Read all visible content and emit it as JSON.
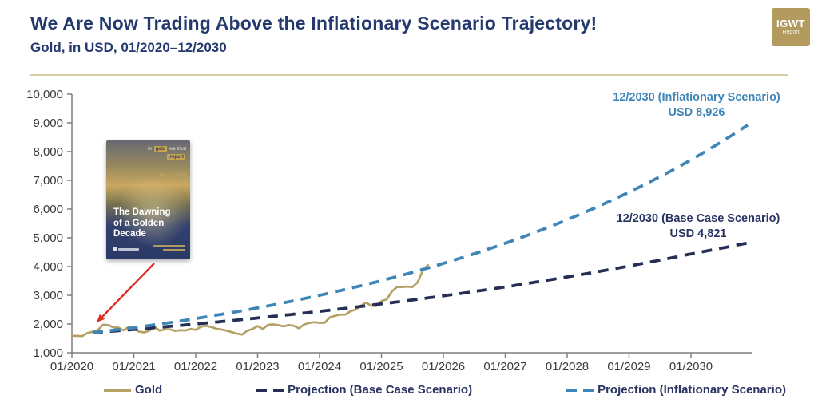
{
  "header": {
    "title": "We Are Now Trading Above the Inflationary Scenario Trajectory!",
    "subtitle": "Gold, in USD, 01/2020–12/2030",
    "logo_line1": "IGWT",
    "logo_line2": "Report"
  },
  "book_cover": {
    "badge_prefix": "in",
    "badge_gold": "gold",
    "badge_suffix": "we trust",
    "badge_report": ".report",
    "date": "May 27, 2020\nExtended Version",
    "title": "The Dawning\nof a Golden\nDecade"
  },
  "legend": [
    {
      "label": "Gold",
      "style": "solid",
      "color": "#b3a165"
    },
    {
      "label": "Projection (Base Case Scenario)",
      "style": "dashed",
      "color": "#262e56"
    },
    {
      "label": "Projection (Inflationary Scenario)",
      "style": "dashed",
      "color": "#3e86b8"
    }
  ],
  "chart_data": {
    "type": "line",
    "title": "Gold, in USD, 01/2020–12/2030",
    "xlabel": "",
    "ylabel": "",
    "ylim": [
      1000,
      10000
    ],
    "grid": false,
    "legend_position": "bottom",
    "axis_color": "#7f7f7f",
    "tick_label_color": "#3a3a3a",
    "y_ticks": [
      "1,000",
      "2,000",
      "3,000",
      "4,000",
      "5,000",
      "6,000",
      "7,000",
      "8,000",
      "9,000",
      "10,000"
    ],
    "x_ticks": [
      "01/2020",
      "01/2021",
      "01/2022",
      "01/2023",
      "01/2024",
      "01/2025",
      "01/2026",
      "01/2027",
      "01/2028",
      "01/2029",
      "01/2030"
    ],
    "annotations": [
      {
        "id": "inflationary-target",
        "line1": "12/2030 (Inflationary Scenario)",
        "line2": "USD 8,926",
        "color": "#3e86b8"
      },
      {
        "id": "base-case-target",
        "line1": "12/2030 (Base Case Scenario)",
        "line2": "USD 4,821",
        "color": "#2a3462"
      }
    ],
    "series": [
      {
        "id": "gold",
        "name": "Gold",
        "style": "solid",
        "color": "#b3a165",
        "start_month": 0,
        "interval_months": 1,
        "values": [
          1589,
          1586,
          1577,
          1687,
          1730,
          1781,
          1976,
          1968,
          1886,
          1879,
          1777,
          1898,
          1848,
          1734,
          1708,
          1768,
          1907,
          1770,
          1814,
          1814,
          1757,
          1783,
          1775,
          1829,
          1797,
          1909,
          1937,
          1897,
          1837,
          1807,
          1766,
          1716,
          1661,
          1634,
          1769,
          1824,
          1928,
          1827,
          1969,
          1990,
          1963,
          1919,
          1965,
          1940,
          1849,
          1984,
          2036,
          2063,
          2040,
          2044,
          2230,
          2286,
          2327,
          2327,
          2448,
          2503,
          2635,
          2744,
          2643,
          2625,
          2798,
          2858,
          3124,
          3289,
          3289,
          3303,
          3290,
          3448,
          3859,
          4050
        ]
      },
      {
        "id": "projection-base-case",
        "name": "Projection (Base Case Scenario)",
        "style": "dashed",
        "color": "#262e56",
        "anchors": {
          "months": [
            4,
            12,
            24,
            36,
            48,
            60,
            72,
            84,
            96,
            108,
            120,
            131
          ],
          "values": [
            1700,
            1810,
            2000,
            2210,
            2440,
            2700,
            2980,
            3290,
            3640,
            4020,
            4440,
            4821
          ]
        },
        "end_label_value": 4821
      },
      {
        "id": "projection-inflationary",
        "name": "Projection (Inflationary Scenario)",
        "style": "dashed",
        "color": "#3e86b8",
        "anchors": {
          "months": [
            4,
            12,
            24,
            36,
            48,
            60,
            72,
            84,
            96,
            108,
            120,
            131
          ],
          "values": [
            1700,
            1870,
            2190,
            2560,
            3000,
            3510,
            4110,
            4810,
            5630,
            6590,
            7710,
            8926
          ]
        },
        "end_label_value": 8926
      }
    ]
  }
}
